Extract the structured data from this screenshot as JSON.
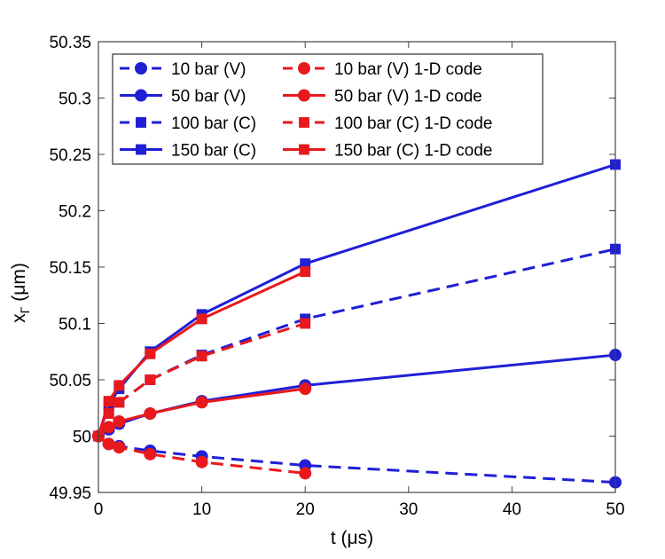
{
  "chart_data": {
    "type": "line",
    "title": "",
    "xlabel": "t (μs)",
    "ylabel_main": "x",
    "ylabel_sub": "Γ",
    "ylabel_unit": "(μm)",
    "xlim": [
      0,
      50
    ],
    "ylim": [
      49.95,
      50.35
    ],
    "xticks": [
      0,
      10,
      20,
      30,
      40,
      50
    ],
    "xtick_labels": [
      "0",
      "10",
      "20",
      "30",
      "40",
      "50"
    ],
    "yticks": [
      49.95,
      50.0,
      50.05,
      50.1,
      50.15,
      50.2,
      50.25,
      50.3,
      50.35
    ],
    "ytick_labels": [
      "49.95",
      "50",
      "50.05",
      "50.1",
      "50.15",
      "50.2",
      "50.25",
      "50.3",
      "50.35"
    ],
    "grid": false,
    "legend_position": "top-left",
    "colors": {
      "blue": "#1f1fd6",
      "red": "#e8191c"
    },
    "series": [
      {
        "name": "10 bar (V)",
        "color": "#1f1fd6",
        "dash": true,
        "marker": "circle",
        "x": [
          0,
          1,
          2,
          5,
          10,
          20,
          50
        ],
        "y": [
          50.0,
          49.993,
          49.991,
          49.987,
          49.982,
          49.974,
          49.959
        ]
      },
      {
        "name": "50 bar (V)",
        "color": "#1f1fd6",
        "dash": false,
        "marker": "circle",
        "x": [
          0,
          1,
          2,
          5,
          10,
          20,
          50
        ],
        "y": [
          50.0,
          50.006,
          50.011,
          50.02,
          50.031,
          50.045,
          50.072
        ]
      },
      {
        "name": "100 bar (C)",
        "color": "#1f1fd6",
        "dash": true,
        "marker": "square",
        "x": [
          0,
          1,
          2,
          5,
          10,
          20,
          50
        ],
        "y": [
          50.0,
          50.02,
          50.03,
          50.05,
          50.072,
          50.104,
          50.166
        ]
      },
      {
        "name": "150 bar (C)",
        "color": "#1f1fd6",
        "dash": false,
        "marker": "square",
        "x": [
          0,
          1,
          2,
          5,
          10,
          20,
          50
        ],
        "y": [
          50.0,
          50.028,
          50.042,
          50.075,
          50.108,
          50.153,
          50.241
        ]
      },
      {
        "name": "10 bar (V) 1-D code",
        "color": "#e8191c",
        "dash": true,
        "marker": "circle",
        "x": [
          0,
          1,
          2,
          5,
          10,
          20
        ],
        "y": [
          50.0,
          49.993,
          49.99,
          49.984,
          49.977,
          49.967
        ]
      },
      {
        "name": "50 bar (V) 1-D code",
        "color": "#e8191c",
        "dash": false,
        "marker": "circle",
        "x": [
          0,
          1,
          2,
          5,
          10,
          20
        ],
        "y": [
          50.0,
          50.008,
          50.013,
          50.02,
          50.03,
          50.042
        ]
      },
      {
        "name": "100 bar (C) 1-D code",
        "color": "#e8191c",
        "dash": true,
        "marker": "square",
        "x": [
          0,
          1,
          2,
          5,
          10,
          20
        ],
        "y": [
          50.0,
          50.02,
          50.03,
          50.05,
          50.071,
          50.1
        ]
      },
      {
        "name": "150 bar (C) 1-D code",
        "color": "#e8191c",
        "dash": false,
        "marker": "square",
        "x": [
          0,
          1,
          2,
          5,
          10,
          20
        ],
        "y": [
          50.0,
          50.031,
          50.045,
          50.073,
          50.104,
          50.146
        ]
      }
    ]
  }
}
